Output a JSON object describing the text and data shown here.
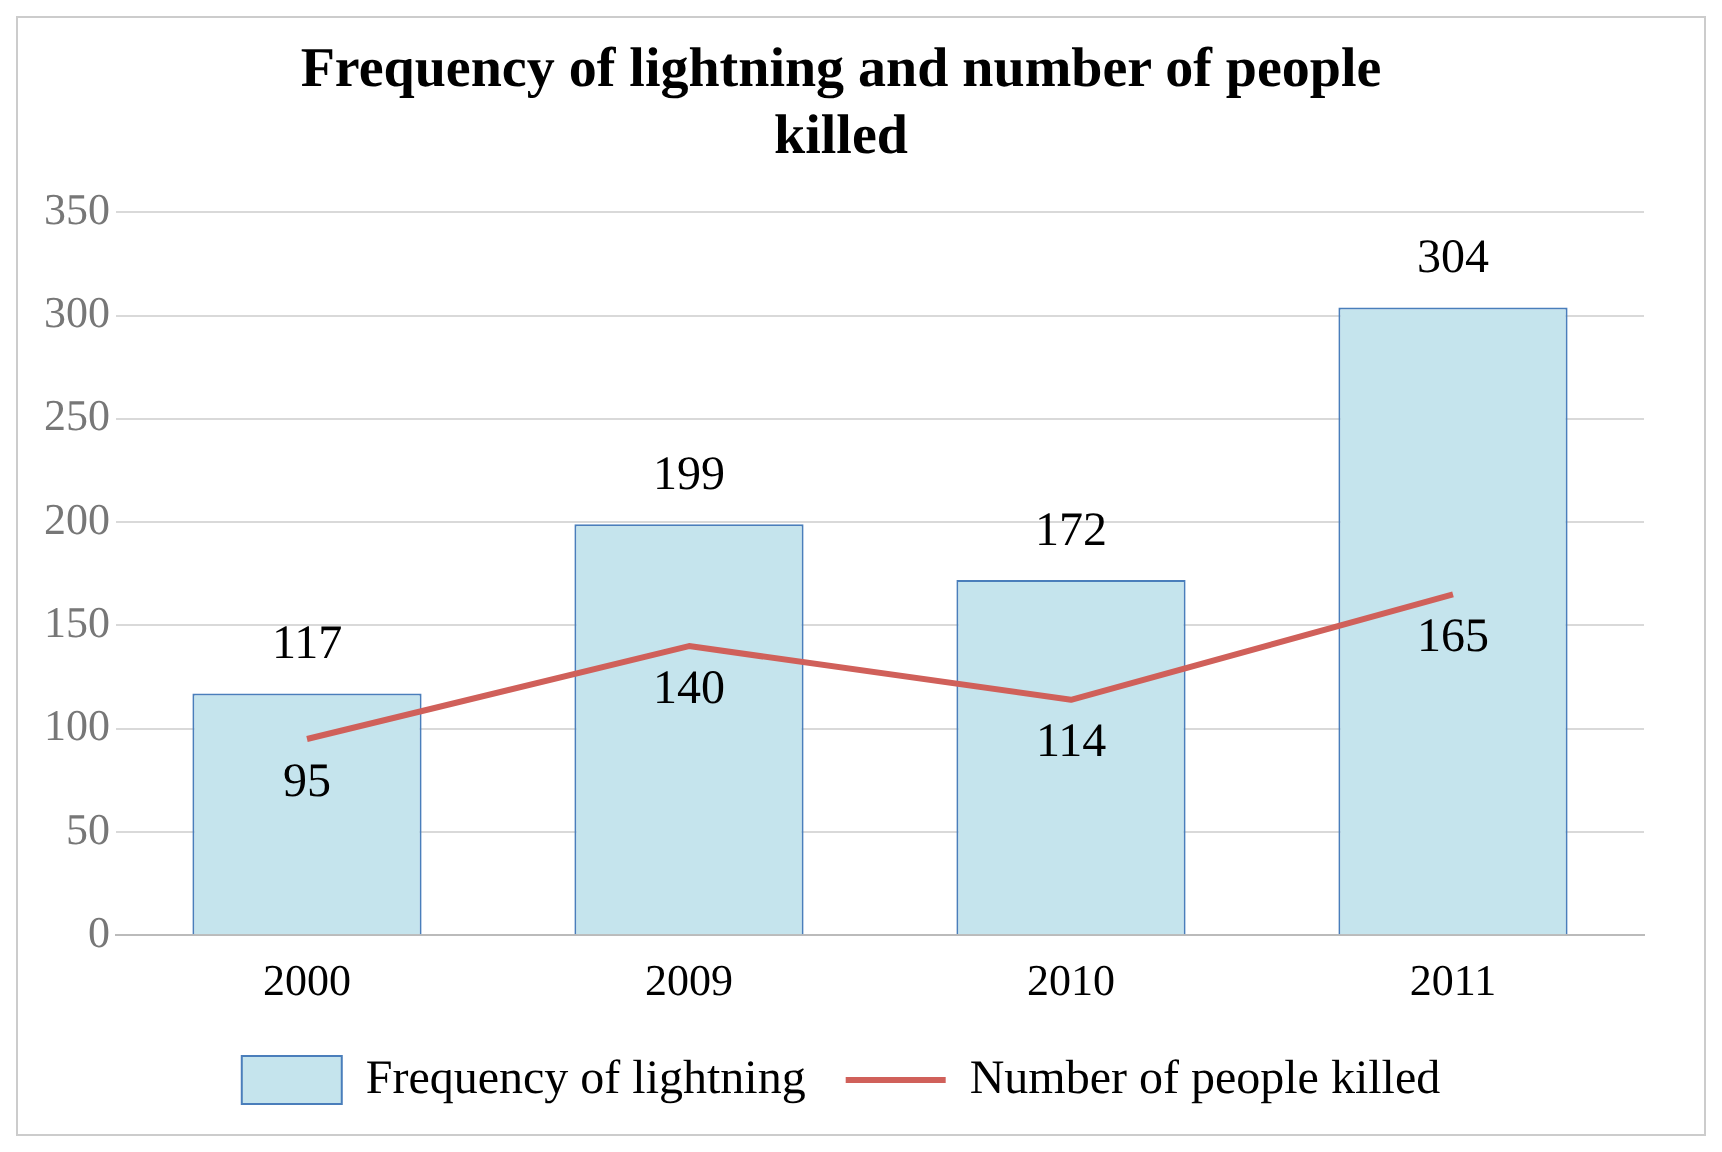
{
  "chart_data": {
    "type": "bar",
    "title": "Frequency of lightning and number of people killed",
    "categories": [
      "2000",
      "2009",
      "2010",
      "2011"
    ],
    "series": [
      {
        "name": "Frequency of lightning",
        "color": "#c5e4ed",
        "values": [
          117,
          199,
          172,
          304
        ]
      },
      {
        "name": "Number of people killed",
        "type": "line",
        "color": "#d0605a",
        "values": [
          95,
          140,
          114,
          165
        ]
      }
    ],
    "ylim": [
      0,
      350
    ],
    "yticks": [
      0,
      50,
      100,
      150,
      200,
      250,
      300,
      350
    ],
    "grid": "y",
    "legend": "bottom",
    "data_labels": true,
    "marker": "none"
  }
}
